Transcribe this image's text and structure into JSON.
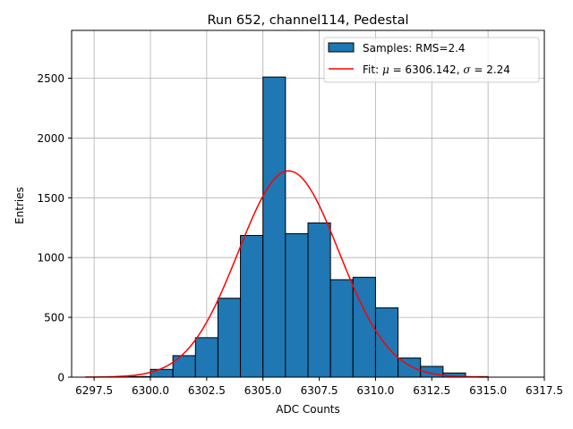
{
  "chart_data": {
    "type": "histogram",
    "title": "Run 652, channel114, Pedestal",
    "xlabel": "ADC Counts",
    "ylabel": "Entries",
    "xlim": [
      6296.5,
      6317.5
    ],
    "ylim": [
      0,
      2900
    ],
    "xticks": [
      6297.5,
      6300.0,
      6302.5,
      6305.0,
      6307.5,
      6310.0,
      6312.5,
      6315.0,
      6317.5
    ],
    "xtick_labels": [
      "6297.5",
      "6300.0",
      "6302.5",
      "6305.0",
      "6307.5",
      "6310.0",
      "6312.5",
      "6315.0",
      "6317.5"
    ],
    "yticks": [
      0,
      500,
      1000,
      1500,
      2000,
      2500
    ],
    "ytick_labels": [
      "0",
      "500",
      "1000",
      "1500",
      "2000",
      "2500"
    ],
    "grid": true,
    "bin_width": 1.0,
    "bins": [
      {
        "start": 6299,
        "count": 5
      },
      {
        "start": 6300,
        "count": 65
      },
      {
        "start": 6301,
        "count": 180
      },
      {
        "start": 6302,
        "count": 330
      },
      {
        "start": 6303,
        "count": 660
      },
      {
        "start": 6304,
        "count": 1185
      },
      {
        "start": 6305,
        "count": 2510
      },
      {
        "start": 6306,
        "count": 1200
      },
      {
        "start": 6307,
        "count": 1290
      },
      {
        "start": 6308,
        "count": 815
      },
      {
        "start": 6309,
        "count": 835
      },
      {
        "start": 6310,
        "count": 580
      },
      {
        "start": 6311,
        "count": 160
      },
      {
        "start": 6312,
        "count": 90
      },
      {
        "start": 6313,
        "count": 35
      },
      {
        "start": 6314,
        "count": 5
      }
    ],
    "fit": {
      "mu": 6306.142,
      "sigma": 2.24,
      "amplitude": 1725,
      "x_range": [
        6297.1,
        6315.0
      ]
    },
    "legend": {
      "location": "upper right",
      "samples_label": "Samples: RMS=2.4",
      "fit_prefix": "Fit: ",
      "fit_mu_symbol": "μ",
      "fit_mu_text": " = 6306.142, ",
      "fit_sigma_symbol": "σ",
      "fit_sigma_text": " = 2.24"
    },
    "colors": {
      "bar_fill": "#1f77b4",
      "bar_edge": "#000000",
      "fit_line": "#ff0000",
      "grid": "#b0b0b0"
    }
  }
}
